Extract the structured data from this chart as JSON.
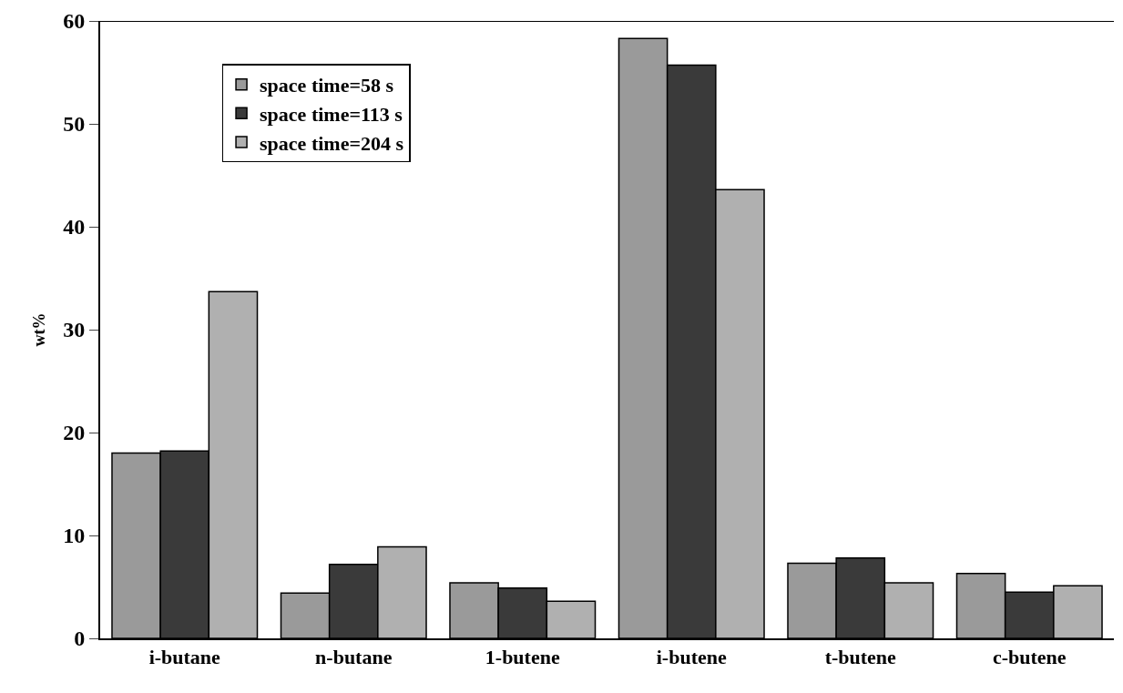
{
  "chart_data": {
    "type": "bar",
    "ylabel": "wt%",
    "categories": [
      "i-butane",
      "n-butane",
      "1-butene",
      "i-butene",
      "t-butene",
      "c-butene"
    ],
    "series": [
      {
        "name": "space time=58 s",
        "color": "#9a9a9a",
        "values": [
          18.0,
          4.4,
          5.4,
          58.3,
          7.3,
          6.3
        ]
      },
      {
        "name": "space time=113 s",
        "color": "#3a3a3a",
        "values": [
          18.2,
          7.2,
          4.9,
          55.7,
          7.8,
          4.5
        ]
      },
      {
        "name": "space time=204 s",
        "color": "#b0b0b0",
        "values": [
          33.7,
          8.9,
          3.6,
          43.6,
          5.4,
          5.1
        ]
      }
    ],
    "ylim": [
      0,
      60
    ],
    "yticks": [
      0,
      10,
      20,
      30,
      40,
      50,
      60
    ],
    "legend": "top left"
  }
}
